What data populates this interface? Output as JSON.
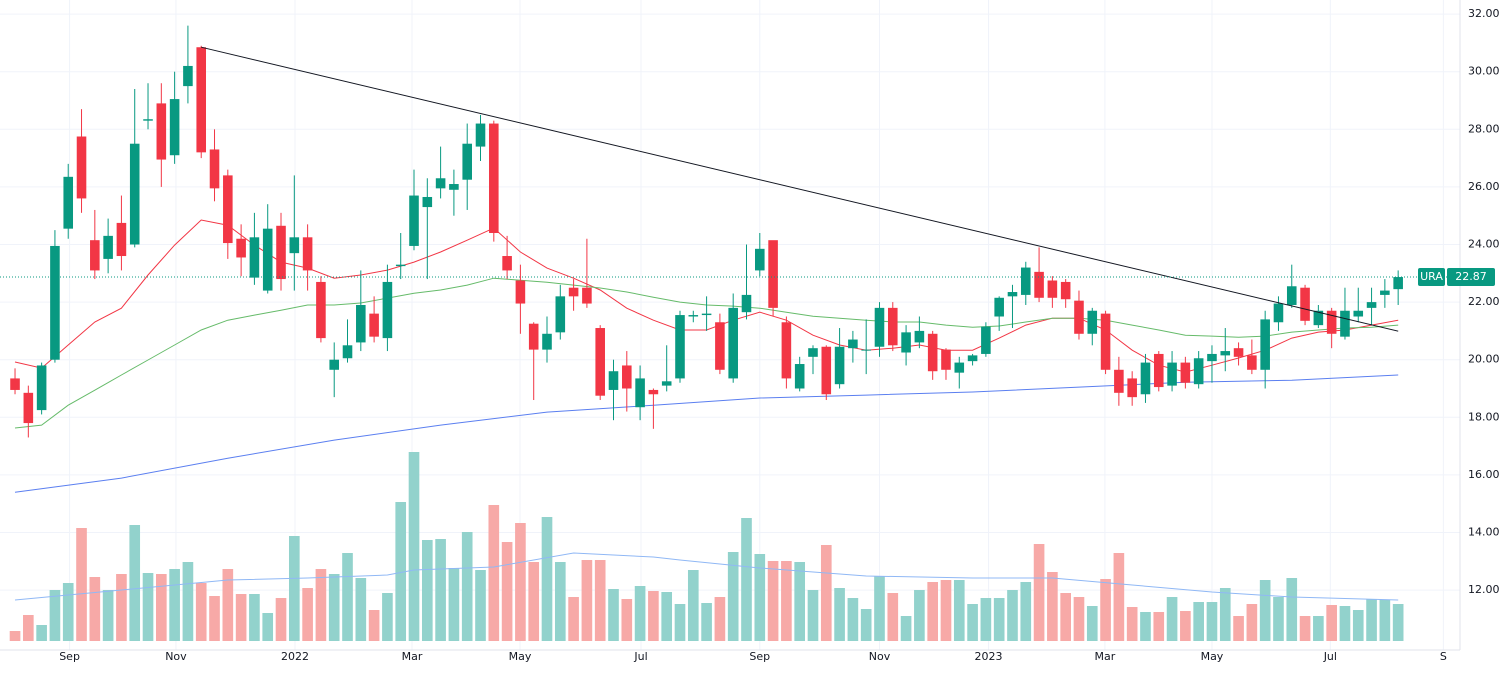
{
  "chart_data": {
    "type": "candlestick",
    "symbol": "URA",
    "last_price": 22.87,
    "xlim": [
      -1.13,
      108.65
    ],
    "xticks": [
      {
        "value": 4.1,
        "label": "Sep"
      },
      {
        "value": 12.1,
        "label": "Nov"
      },
      {
        "value": 21.05,
        "label": "2022"
      },
      {
        "value": 29.85,
        "label": "Mar"
      },
      {
        "value": 37.97,
        "label": "May"
      },
      {
        "value": 47.07,
        "label": "Jul"
      },
      {
        "value": 56.0,
        "label": "Sep"
      },
      {
        "value": 65.0,
        "label": "Nov"
      },
      {
        "value": 73.2,
        "label": "2023"
      },
      {
        "value": 81.95,
        "label": "Mar"
      },
      {
        "value": 90.0,
        "label": "May"
      },
      {
        "value": 98.9,
        "label": "Jul"
      },
      {
        "value": 107.4,
        "label": "S"
      }
    ],
    "ylim": [
      9.92,
      32.49
    ],
    "yticks": [
      {
        "value": 12,
        "label": "12.00"
      },
      {
        "value": 14,
        "label": "14.00"
      },
      {
        "value": 16,
        "label": "16.00"
      },
      {
        "value": 18,
        "label": "18.00"
      },
      {
        "value": 20,
        "label": "20.00"
      },
      {
        "value": 22,
        "label": "22.00"
      },
      {
        "value": 24,
        "label": "24.00"
      },
      {
        "value": 26,
        "label": "26.00"
      },
      {
        "value": 28,
        "label": "28.00"
      },
      {
        "value": 30,
        "label": "30.00"
      },
      {
        "value": 32,
        "label": "32.00"
      }
    ],
    "grid": true,
    "up_color": "#089981",
    "down_color": "#f23645",
    "volume_up_color": "#92d2cc",
    "volume_down_color": "#f7a9a7",
    "open": [
      19.35,
      18.85,
      18.25,
      20.0,
      24.55,
      27.75,
      24.15,
      23.5,
      24.75,
      24.0,
      28.3,
      28.9,
      27.1,
      29.5,
      30.85,
      27.3,
      26.4,
      24.2,
      22.85,
      22.4,
      24.65,
      23.7,
      24.25,
      22.7,
      19.65,
      20.05,
      20.6,
      21.6,
      20.75,
      23.25,
      23.95,
      25.3,
      25.95,
      25.9,
      26.25,
      27.4,
      28.2,
      23.6,
      22.75,
      21.25,
      20.35,
      20.95,
      22.5,
      22.5,
      21.1,
      18.95,
      19.8,
      18.35,
      18.95,
      19.1,
      19.35,
      21.5,
      21.55,
      21.3,
      19.35,
      21.65,
      23.1,
      24.15,
      21.3,
      19.0,
      20.1,
      20.45,
      19.15,
      20.4,
      20.35,
      20.45,
      21.8,
      20.25,
      20.6,
      20.9,
      20.35,
      19.55,
      19.95,
      20.2,
      21.5,
      22.2,
      22.25,
      23.05,
      22.75,
      22.7,
      22.05,
      20.9,
      21.6,
      19.65,
      19.35,
      18.8,
      20.2,
      19.1,
      19.9,
      19.15,
      19.95,
      20.15,
      20.4,
      20.15,
      19.65,
      21.3,
      21.9,
      22.5,
      21.2,
      21.7,
      20.8,
      21.5,
      21.8,
      22.25,
      22.45
    ],
    "high": [
      19.7,
      19.1,
      19.9,
      24.5,
      26.8,
      28.7,
      25.2,
      24.9,
      25.7,
      29.4,
      29.6,
      29.6,
      30.0,
      31.6,
      30.9,
      28.0,
      26.6,
      24.7,
      25.1,
      25.4,
      25.1,
      26.4,
      24.7,
      22.9,
      20.6,
      21.4,
      23.1,
      22.2,
      23.3,
      24.4,
      26.6,
      26.3,
      27.4,
      26.6,
      28.2,
      28.5,
      28.3,
      24.3,
      23.3,
      21.3,
      21.5,
      22.6,
      22.8,
      24.2,
      21.2,
      20.0,
      20.3,
      19.8,
      19.0,
      20.5,
      21.7,
      21.7,
      22.2,
      21.6,
      22.3,
      24.0,
      24.4,
      24.1,
      21.5,
      20.1,
      20.5,
      20.5,
      21.1,
      21.0,
      21.4,
      22.0,
      22.0,
      21.2,
      21.5,
      21.0,
      20.4,
      20.1,
      20.2,
      21.3,
      22.2,
      22.6,
      23.4,
      23.9,
      22.9,
      22.8,
      22.4,
      21.8,
      21.7,
      20.1,
      19.6,
      20.2,
      20.3,
      20.3,
      20.1,
      20.3,
      20.5,
      21.1,
      20.6,
      20.7,
      21.7,
      22.2,
      23.3,
      22.6,
      21.9,
      21.8,
      22.5,
      22.5,
      22.5,
      22.8,
      23.1
    ],
    "low": [
      18.8,
      17.3,
      18.1,
      19.9,
      24.2,
      25.1,
      22.8,
      23.0,
      23.1,
      23.9,
      28.0,
      26.0,
      26.8,
      28.9,
      27.0,
      25.5,
      23.5,
      22.9,
      22.6,
      22.3,
      22.4,
      22.4,
      22.4,
      20.6,
      18.7,
      19.9,
      20.3,
      20.6,
      20.3,
      22.8,
      23.8,
      22.8,
      25.6,
      25.0,
      25.2,
      26.9,
      24.1,
      22.8,
      20.9,
      18.6,
      19.9,
      20.7,
      21.7,
      21.8,
      18.6,
      17.9,
      18.2,
      17.9,
      17.6,
      18.9,
      19.2,
      21.3,
      21.0,
      19.5,
      19.2,
      21.4,
      22.9,
      21.5,
      19.0,
      18.9,
      19.5,
      18.6,
      19.0,
      19.9,
      19.5,
      20.1,
      20.3,
      19.8,
      20.4,
      19.3,
      19.3,
      19.0,
      19.8,
      20.1,
      21.0,
      21.1,
      21.9,
      22.0,
      21.8,
      21.8,
      20.7,
      20.5,
      19.5,
      18.4,
      18.4,
      18.5,
      18.9,
      18.9,
      19.0,
      19.0,
      19.2,
      19.6,
      19.8,
      19.5,
      19.0,
      21.0,
      21.8,
      21.2,
      21.1,
      20.4,
      20.7,
      21.3,
      21.2,
      21.8,
      21.9
    ],
    "close": [
      18.95,
      17.8,
      19.8,
      23.95,
      26.35,
      25.6,
      23.1,
      24.3,
      23.6,
      27.5,
      28.35,
      26.95,
      29.05,
      30.2,
      27.2,
      25.95,
      24.05,
      23.55,
      24.25,
      24.55,
      22.8,
      24.25,
      23.1,
      20.75,
      20.0,
      20.5,
      21.9,
      20.8,
      22.7,
      23.3,
      25.7,
      25.65,
      26.3,
      26.1,
      27.5,
      28.2,
      24.4,
      23.1,
      21.95,
      20.35,
      20.9,
      22.2,
      22.2,
      21.95,
      18.75,
      19.6,
      19.0,
      19.35,
      18.8,
      19.25,
      21.55,
      21.55,
      21.6,
      19.65,
      21.8,
      22.25,
      23.85,
      21.8,
      19.35,
      19.85,
      20.4,
      18.8,
      20.45,
      20.7,
      20.35,
      21.8,
      20.5,
      20.95,
      21.0,
      19.6,
      19.65,
      19.9,
      20.15,
      21.15,
      22.15,
      22.35,
      23.2,
      22.15,
      22.15,
      22.1,
      20.9,
      21.7,
      19.65,
      18.85,
      18.7,
      19.9,
      19.05,
      19.9,
      19.2,
      20.05,
      20.2,
      20.3,
      20.1,
      19.65,
      21.4,
      21.95,
      22.55,
      21.35,
      21.7,
      20.9,
      21.7,
      21.7,
      22.0,
      22.4,
      22.87
    ],
    "volume_ylim": [
      0,
      641
    ],
    "volume": [
      10,
      26,
      16,
      51,
      58,
      113,
      64,
      51,
      67,
      116,
      68,
      67,
      72,
      79,
      58,
      45,
      72,
      47,
      47,
      28,
      43,
      105,
      53,
      72,
      67,
      88,
      63,
      31,
      48,
      139,
      189,
      101,
      102,
      73,
      109,
      71,
      136,
      99,
      118,
      79,
      124,
      79,
      44,
      81,
      81,
      52,
      42,
      55,
      50,
      49,
      37,
      71,
      38,
      44,
      89,
      123,
      87,
      80,
      80,
      79,
      51,
      96,
      53,
      43,
      32,
      65,
      48,
      25,
      51,
      59,
      61,
      61,
      37,
      43,
      43,
      51,
      59,
      97,
      69,
      48,
      44,
      35,
      62,
      88,
      34,
      29,
      29,
      44,
      30,
      39,
      39,
      53,
      25,
      37,
      61,
      44,
      63,
      25,
      25,
      36,
      35,
      31,
      42,
      41,
      37
    ],
    "moving_averages": [
      {
        "color": "#f23645",
        "x": [
          0,
          2,
          4,
          6,
          8,
          10,
          12,
          14,
          16,
          18,
          20,
          22,
          24,
          26,
          28,
          30,
          32,
          34,
          36,
          38,
          40,
          42,
          44,
          46,
          48,
          50,
          52,
          54,
          56,
          58,
          60,
          62,
          64,
          66,
          68,
          70,
          72,
          74,
          76,
          78,
          80,
          82,
          84,
          86,
          88,
          90,
          92,
          94,
          96,
          98,
          100,
          102,
          104
        ],
        "values": [
          19.92,
          19.71,
          20.51,
          21.31,
          21.79,
          22.94,
          23.98,
          24.85,
          24.67,
          23.98,
          23.39,
          23.18,
          22.83,
          22.94,
          23.11,
          23.39,
          23.74,
          24.15,
          24.57,
          23.74,
          23.18,
          22.83,
          22.42,
          21.79,
          21.37,
          21.03,
          21.03,
          21.37,
          21.65,
          21.37,
          20.85,
          20.51,
          20.33,
          20.4,
          20.51,
          20.33,
          20.33,
          20.75,
          21.2,
          21.44,
          21.44,
          21.03,
          20.33,
          19.81,
          19.57,
          19.81,
          20.06,
          20.33,
          20.75,
          20.96,
          21.03,
          21.2,
          21.37
        ]
      },
      {
        "color": "#66bb6a",
        "x": [
          0,
          2,
          4,
          6,
          8,
          10,
          12,
          14,
          16,
          18,
          20,
          22,
          24,
          26,
          28,
          30,
          32,
          34,
          36,
          38,
          40,
          42,
          44,
          46,
          48,
          50,
          52,
          54,
          56,
          58,
          60,
          62,
          64,
          66,
          68,
          70,
          72,
          74,
          76,
          78,
          80,
          82,
          84,
          86,
          88,
          90,
          92,
          94,
          96,
          98,
          100,
          102,
          104
        ],
        "values": [
          17.63,
          17.73,
          18.42,
          18.94,
          19.47,
          19.99,
          20.51,
          21.03,
          21.37,
          21.55,
          21.72,
          21.9,
          21.9,
          21.97,
          22.14,
          22.31,
          22.42,
          22.59,
          22.83,
          22.76,
          22.69,
          22.59,
          22.49,
          22.35,
          22.17,
          22.0,
          21.9,
          21.86,
          21.79,
          21.65,
          21.51,
          21.44,
          21.37,
          21.31,
          21.31,
          21.2,
          21.13,
          21.17,
          21.31,
          21.44,
          21.44,
          21.37,
          21.2,
          21.03,
          20.85,
          20.82,
          20.78,
          20.82,
          20.96,
          21.03,
          21.1,
          21.13,
          21.2
        ]
      },
      {
        "color": "#5b7ff0",
        "x": [
          0,
          8,
          16,
          24,
          32,
          40,
          48,
          56,
          64,
          72,
          80,
          88,
          96,
          104
        ],
        "values": [
          15.4,
          15.89,
          16.58,
          17.21,
          17.73,
          18.18,
          18.42,
          18.67,
          18.77,
          18.88,
          19.05,
          19.22,
          19.29,
          19.47
        ]
      }
    ],
    "volume_ma": {
      "color": "#90b8f5",
      "x": [
        0,
        8,
        16,
        22,
        28,
        30,
        36,
        42,
        48,
        50,
        56,
        64,
        72,
        78,
        84,
        90,
        96,
        104
      ],
      "values": [
        41,
        51,
        61,
        63,
        66,
        71,
        74,
        88,
        84,
        81,
        73,
        65,
        63,
        63,
        56,
        49,
        44,
        41
      ]
    },
    "trendline": {
      "color": "#131722",
      "x": [
        14,
        104
      ],
      "values": [
        30.85,
        20.99
      ]
    }
  }
}
